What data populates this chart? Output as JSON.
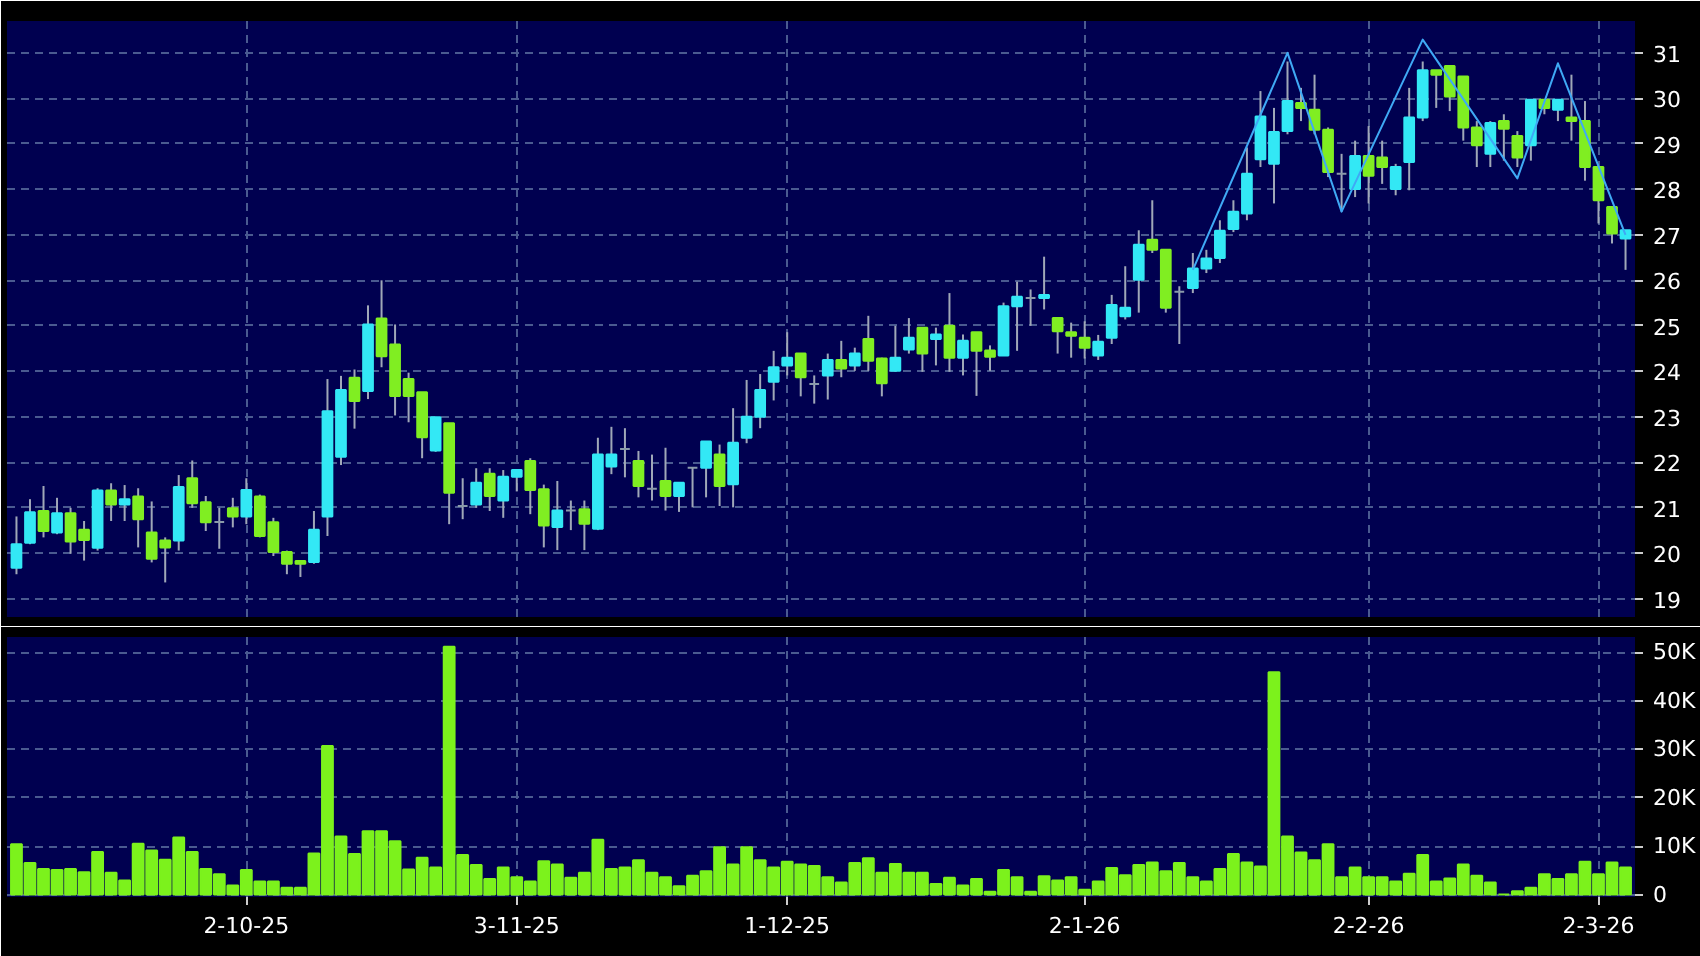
{
  "chart_data": [
    {
      "type": "candlestick",
      "categories": [
        null,
        null,
        null,
        null,
        null,
        null,
        null,
        null,
        null,
        null,
        null,
        null,
        null,
        null,
        null,
        null,
        null,
        null,
        null,
        null,
        null,
        null,
        null,
        null,
        null,
        null,
        null,
        null,
        null,
        null,
        null,
        null,
        null,
        null,
        null,
        null,
        null,
        null,
        null,
        null,
        null,
        null,
        null,
        null,
        null,
        null,
        null,
        null,
        null,
        null,
        null,
        null,
        null,
        null,
        null,
        null,
        null,
        null,
        null,
        null,
        null,
        null,
        null,
        null,
        null,
        null,
        null,
        null,
        null,
        null,
        null,
        null,
        null,
        null,
        null,
        null,
        null,
        null,
        null,
        null,
        null,
        null,
        null,
        null,
        null,
        null,
        null,
        null,
        null,
        null,
        null,
        null,
        null,
        null,
        null,
        null,
        null,
        null,
        null,
        null,
        null,
        null,
        null,
        null,
        null,
        null,
        null,
        null,
        null,
        null,
        null,
        null,
        null,
        null,
        null,
        null,
        null,
        null,
        null,
        null
      ],
      "ohlc": [
        [
          19.68,
          20.81,
          19.54,
          20.2
        ],
        [
          20.23,
          21.19,
          20.2,
          20.9
        ],
        [
          20.93,
          21.48,
          20.35,
          20.49
        ],
        [
          20.46,
          21.22,
          20.42,
          20.88
        ],
        [
          20.88,
          21.0,
          19.99,
          20.26
        ],
        [
          20.52,
          20.71,
          19.84,
          20.29
        ],
        [
          20.12,
          21.43,
          20.06,
          21.38
        ],
        [
          21.38,
          21.54,
          20.71,
          21.07
        ],
        [
          21.07,
          21.5,
          20.71,
          21.19
        ],
        [
          21.25,
          21.43,
          20.13,
          20.75
        ],
        [
          20.46,
          21.14,
          19.8,
          19.88
        ],
        [
          20.28,
          20.35,
          19.36,
          20.13
        ],
        [
          20.28,
          21.72,
          20.06,
          21.46
        ],
        [
          21.65,
          22.04,
          21.0,
          21.1
        ],
        [
          21.12,
          21.26,
          20.49,
          20.68
        ],
        [
          20.69,
          21.0,
          20.1,
          20.69
        ],
        [
          20.99,
          21.22,
          20.57,
          20.81
        ],
        [
          20.81,
          21.65,
          20.64,
          21.39
        ],
        [
          21.25,
          21.29,
          20.35,
          20.38
        ],
        [
          20.68,
          20.78,
          19.94,
          20.03
        ],
        [
          20.03,
          20.06,
          19.54,
          19.77
        ],
        [
          19.83,
          19.84,
          19.48,
          19.77
        ],
        [
          19.81,
          20.93,
          19.77,
          20.52
        ],
        [
          20.81,
          23.83,
          20.38,
          23.12
        ],
        [
          22.12,
          23.9,
          21.94,
          23.59
        ],
        [
          23.86,
          24.04,
          22.74,
          23.35
        ],
        [
          23.57,
          25.45,
          23.39,
          25.03
        ],
        [
          25.16,
          26.0,
          24.09,
          24.33
        ],
        [
          24.59,
          25.03,
          23.03,
          23.46
        ],
        [
          23.83,
          23.97,
          22.88,
          23.46
        ],
        [
          23.54,
          23.54,
          22.09,
          22.55
        ],
        [
          22.26,
          23.0,
          22.23,
          22.99
        ],
        [
          22.86,
          22.86,
          20.64,
          21.33
        ],
        [
          21.04,
          21.65,
          20.75,
          21.04
        ],
        [
          21.07,
          21.87,
          21.0,
          21.55
        ],
        [
          21.75,
          21.87,
          20.93,
          21.26
        ],
        [
          21.16,
          21.83,
          20.78,
          21.68
        ],
        [
          21.68,
          21.83,
          21.36,
          21.83
        ],
        [
          22.03,
          22.09,
          20.86,
          21.39
        ],
        [
          21.41,
          21.51,
          20.13,
          20.61
        ],
        [
          20.58,
          21.59,
          20.07,
          20.94
        ],
        [
          20.94,
          21.16,
          20.51,
          20.94
        ],
        [
          20.97,
          21.16,
          20.07,
          20.65
        ],
        [
          20.54,
          22.54,
          20.51,
          22.17
        ],
        [
          21.91,
          22.78,
          21.74,
          22.17
        ],
        [
          22.29,
          22.75,
          21.67,
          22.29
        ],
        [
          22.03,
          22.25,
          21.23,
          21.48
        ],
        [
          21.42,
          22.17,
          21.16,
          21.42
        ],
        [
          21.59,
          22.32,
          20.94,
          21.26
        ],
        [
          21.26,
          21.55,
          20.91,
          21.55
        ],
        [
          21.88,
          21.88,
          21.01,
          21.88
        ],
        [
          21.88,
          22.46,
          21.23,
          22.46
        ],
        [
          22.17,
          22.39,
          21.04,
          21.48
        ],
        [
          21.52,
          23.19,
          21.01,
          22.43
        ],
        [
          22.54,
          23.81,
          22.42,
          23.0
        ],
        [
          23.0,
          23.94,
          22.75,
          23.59
        ],
        [
          23.77,
          24.45,
          23.36,
          24.09
        ],
        [
          24.13,
          24.86,
          23.91,
          24.3
        ],
        [
          24.39,
          24.39,
          23.45,
          23.87
        ],
        [
          23.72,
          23.91,
          23.29,
          23.72
        ],
        [
          23.91,
          24.39,
          23.38,
          24.25
        ],
        [
          24.25,
          24.67,
          23.87,
          24.06
        ],
        [
          24.13,
          24.52,
          24.01,
          24.39
        ],
        [
          24.71,
          25.22,
          24.01,
          24.23
        ],
        [
          24.28,
          24.3,
          23.45,
          23.74
        ],
        [
          24.01,
          25.0,
          23.99,
          24.3
        ],
        [
          24.48,
          25.17,
          24.39,
          24.74
        ],
        [
          24.96,
          24.96,
          23.99,
          24.39
        ],
        [
          24.71,
          24.96,
          24.13,
          24.81
        ],
        [
          25.0,
          25.72,
          23.99,
          24.3
        ],
        [
          24.3,
          24.81,
          23.91,
          24.67
        ],
        [
          24.86,
          24.86,
          23.46,
          24.45
        ],
        [
          24.46,
          24.57,
          24.01,
          24.32
        ],
        [
          24.35,
          25.51,
          24.35,
          25.43
        ],
        [
          25.43,
          25.97,
          24.45,
          25.64
        ],
        [
          25.61,
          25.8,
          25.0,
          25.61
        ],
        [
          25.61,
          26.52,
          25.36,
          25.68
        ],
        [
          25.17,
          25.17,
          24.39,
          24.88
        ],
        [
          24.86,
          25.07,
          24.3,
          24.78
        ],
        [
          24.74,
          25.1,
          24.28,
          24.52
        ],
        [
          24.35,
          24.8,
          24.25,
          24.65
        ],
        [
          24.74,
          25.68,
          24.6,
          25.46
        ],
        [
          25.21,
          26.31,
          25.14,
          25.4
        ],
        [
          26.01,
          27.1,
          25.29,
          26.78
        ],
        [
          26.89,
          27.76,
          26.6,
          26.67
        ],
        [
          26.67,
          26.67,
          25.29,
          25.4
        ],
        [
          25.75,
          25.87,
          24.6,
          25.75
        ],
        [
          25.83,
          26.6,
          25.72,
          26.26
        ],
        [
          26.26,
          26.67,
          26.16,
          26.48
        ],
        [
          26.49,
          27.32,
          26.38,
          27.09
        ],
        [
          27.13,
          27.76,
          27.06,
          27.51
        ],
        [
          27.47,
          28.92,
          27.32,
          28.34
        ],
        [
          28.66,
          30.16,
          28.49,
          29.6
        ],
        [
          28.56,
          29.79,
          27.69,
          29.26
        ],
        [
          29.28,
          30.81,
          29.21,
          29.94
        ],
        [
          29.9,
          30.23,
          29.5,
          29.79
        ],
        [
          29.75,
          30.52,
          29.21,
          29.31
        ],
        [
          29.31,
          29.36,
          28.27,
          28.38
        ],
        [
          28.34,
          28.78,
          27.51,
          28.34
        ],
        [
          28.01,
          29.07,
          27.83,
          28.73
        ],
        [
          28.73,
          29.39,
          27.69,
          28.3
        ],
        [
          28.7,
          29.07,
          28.12,
          28.49
        ],
        [
          28.01,
          28.56,
          27.87,
          28.49
        ],
        [
          28.6,
          30.23,
          27.98,
          29.58
        ],
        [
          29.58,
          30.81,
          29.5,
          30.62
        ],
        [
          30.62,
          30.62,
          29.79,
          30.52
        ],
        [
          30.71,
          30.71,
          29.72,
          30.04
        ],
        [
          30.48,
          30.48,
          29.07,
          29.36
        ],
        [
          29.36,
          29.5,
          28.49,
          28.97
        ],
        [
          28.78,
          29.5,
          28.49,
          29.46
        ],
        [
          29.5,
          29.65,
          28.63,
          29.33
        ],
        [
          29.17,
          29.28,
          28.49,
          28.7
        ],
        [
          28.97,
          29.97,
          28.63,
          29.97
        ],
        [
          29.97,
          29.97,
          29.65,
          29.79
        ],
        [
          29.75,
          29.97,
          29.5,
          29.97
        ],
        [
          29.58,
          30.52,
          29.07,
          29.5
        ],
        [
          29.5,
          29.94,
          28.19,
          28.49
        ],
        [
          28.49,
          28.49,
          27.25,
          27.76
        ],
        [
          27.61,
          27.61,
          26.81,
          27.03
        ],
        [
          26.92,
          27.1,
          26.23,
          27.1
        ]
      ],
      "colors": [
        "#33e8f5",
        "#33e8f5",
        "#80ee22",
        "#33e8f5",
        "#80ee22",
        "#80ee22",
        "#33e8f5",
        "#80ee22",
        "#33e8f5",
        "#80ee22",
        "#80ee22",
        "#80ee22",
        "#33e8f5",
        "#80ee22",
        "#80ee22",
        "#8a9aaa",
        "#80ee22",
        "#33e8f5",
        "#80ee22",
        "#80ee22",
        "#80ee22",
        "#80ee22",
        "#33e8f5",
        "#33e8f5",
        "#33e8f5",
        "#80ee22",
        "#33e8f5",
        "#80ee22",
        "#80ee22",
        "#80ee22",
        "#80ee22",
        "#33e8f5",
        "#80ee22",
        "#8a9aaa",
        "#33e8f5",
        "#80ee22",
        "#33e8f5",
        "#33e8f5",
        "#80ee22",
        "#80ee22",
        "#33e8f5",
        "#8a9aaa",
        "#80ee22",
        "#33e8f5",
        "#33e8f5",
        "#8a9aaa",
        "#80ee22",
        "#8a9aaa",
        "#80ee22",
        "#33e8f5",
        "#8a9aaa",
        "#33e8f5",
        "#80ee22",
        "#33e8f5",
        "#33e8f5",
        "#33e8f5",
        "#33e8f5",
        "#33e8f5",
        "#80ee22",
        "#8a9aaa",
        "#33e8f5",
        "#80ee22",
        "#33e8f5",
        "#80ee22",
        "#80ee22",
        "#33e8f5",
        "#33e8f5",
        "#80ee22",
        "#33e8f5",
        "#80ee22",
        "#33e8f5",
        "#80ee22",
        "#80ee22",
        "#33e8f5",
        "#33e8f5",
        "#8a9aaa",
        "#33e8f5",
        "#80ee22",
        "#80ee22",
        "#80ee22",
        "#33e8f5",
        "#33e8f5",
        "#33e8f5",
        "#33e8f5",
        "#80ee22",
        "#80ee22",
        "#8a9aaa",
        "#33e8f5",
        "#33e8f5",
        "#33e8f5",
        "#33e8f5",
        "#33e8f5",
        "#33e8f5",
        "#33e8f5",
        "#33e8f5",
        "#80ee22",
        "#80ee22",
        "#80ee22",
        "#8a9aaa",
        "#33e8f5",
        "#80ee22",
        "#80ee22",
        "#33e8f5",
        "#33e8f5",
        "#33e8f5",
        "#80ee22",
        "#80ee22",
        "#80ee22",
        "#80ee22",
        "#33e8f5",
        "#80ee22",
        "#80ee22",
        "#33e8f5",
        "#80ee22",
        "#33e8f5",
        "#80ee22",
        "#80ee22",
        "#80ee22",
        "#80ee22",
        "#33e8f5"
      ],
      "series": [
        {
          "type": "line",
          "color": "#3fa9f5",
          "values": [
            null,
            null,
            null,
            null,
            null,
            null,
            null,
            null,
            null,
            null,
            null,
            null,
            null,
            null,
            null,
            null,
            null,
            null,
            null,
            null,
            null,
            null,
            null,
            null,
            null,
            null,
            null,
            null,
            null,
            null,
            null,
            null,
            null,
            null,
            null,
            null,
            null,
            null,
            null,
            null,
            null,
            null,
            null,
            null,
            null,
            null,
            null,
            null,
            null,
            null,
            null,
            null,
            null,
            null,
            null,
            null,
            null,
            null,
            null,
            null,
            null,
            null,
            null,
            null,
            null,
            null,
            null,
            null,
            null,
            null,
            null,
            null,
            null,
            null,
            null,
            null,
            null,
            null,
            null,
            null,
            null,
            null,
            null,
            null,
            null,
            null,
            null,
            26.23,
            null,
            null,
            null,
            null,
            null,
            null,
            31.0,
            null,
            null,
            null,
            27.51,
            null,
            null,
            null,
            null,
            null,
            31.29,
            null,
            null,
            null,
            null,
            null,
            null,
            28.24,
            null,
            null,
            30.77,
            null,
            null,
            null,
            null,
            27.0
          ]
        }
      ],
      "ylim": [
        18.6,
        31.7
      ],
      "yticks": [
        19,
        20,
        21,
        22,
        23,
        24,
        25,
        26,
        27,
        28,
        29,
        30,
        31
      ],
      "grid": true,
      "tick_labels": "y"
    },
    {
      "type": "bar",
      "categories": [
        null,
        null,
        null,
        null,
        null,
        null,
        null,
        null,
        null,
        null,
        null,
        null,
        null,
        null,
        null,
        null,
        null,
        "2-10-25",
        null,
        null,
        null,
        null,
        null,
        null,
        null,
        null,
        null,
        null,
        null,
        null,
        null,
        null,
        null,
        null,
        null,
        null,
        null,
        "3-11-25",
        null,
        null,
        null,
        null,
        null,
        null,
        null,
        null,
        null,
        null,
        null,
        null,
        null,
        null,
        null,
        null,
        null,
        null,
        null,
        "1-12-25",
        null,
        null,
        null,
        null,
        null,
        null,
        null,
        null,
        null,
        null,
        null,
        null,
        null,
        null,
        null,
        null,
        null,
        null,
        null,
        null,
        null,
        "2-1-26",
        null,
        null,
        null,
        null,
        null,
        null,
        null,
        null,
        null,
        null,
        null,
        null,
        null,
        null,
        null,
        null,
        null,
        null,
        null,
        null,
        "2-2-26",
        null,
        null,
        null,
        null,
        null,
        null,
        null,
        null,
        null,
        null,
        null,
        null,
        null,
        null,
        null,
        null,
        "2-3-26",
        null,
        null
      ],
      "values": [
        10.4,
        6.5,
        5.3,
        5.1,
        5.3,
        4.6,
        8.8,
        4.5,
        2.9,
        10.5,
        9.1,
        7.2,
        11.8,
        8.8,
        5.3,
        4.2,
        1.9,
        5.1,
        2.7,
        2.7,
        1.4,
        1.4,
        8.5,
        30.7,
        12.0,
        8.4,
        13.1,
        13.1,
        11.0,
        5.2,
        7.6,
        5.6,
        51.2,
        8.2,
        6.1,
        3.2,
        5.6,
        3.6,
        2.7,
        6.9,
        6.2,
        3.5,
        4.5,
        11.3,
        5.3,
        5.6,
        7.1,
        4.5,
        3.6,
        1.7,
        3.9,
        4.8,
        9.8,
        6.2,
        9.8,
        7.1,
        5.6,
        6.8,
        6.2,
        5.9,
        3.6,
        2.5,
        6.5,
        7.5,
        4.5,
        6.3,
        4.5,
        4.5,
        2.2,
        3.5,
        1.9,
        3.2,
        0.6,
        5.1,
        3.6,
        0.6,
        3.8,
        2.9,
        3.6,
        1.0,
        2.7,
        5.5,
        4.0,
        6.1,
        6.6,
        4.8,
        6.5,
        3.6,
        2.7,
        5.3,
        8.4,
        6.6,
        5.8,
        45.9,
        12.0,
        8.7,
        7.1,
        10.4,
        3.6,
        5.6,
        3.6,
        3.6,
        2.7,
        4.3,
        8.2,
        2.7,
        3.3,
        6.2,
        3.9,
        2.5,
        0,
        0.7,
        1.4,
        4.2,
        3.2,
        4.2,
        6.8,
        4.2,
        6.6,
        5.6
      ],
      "color": "#7cf21c",
      "ylim": [
        -0.5,
        53.2
      ],
      "yticks": [
        0,
        {
          "value": 10,
          "label": "10K"
        },
        {
          "value": 20,
          "label": "20K"
        },
        {
          "value": 30,
          "label": "30K"
        },
        {
          "value": 40,
          "label": "40K"
        },
        {
          "value": 50,
          "label": "50K"
        }
      ],
      "grid": true
    }
  ]
}
